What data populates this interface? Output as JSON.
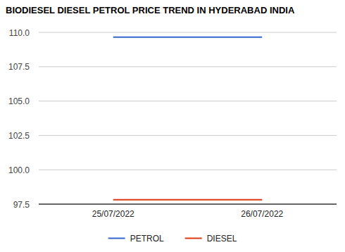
{
  "chart_data": {
    "type": "line",
    "title": "BIODIESEL DIESEL PETROL PRICE TREND IN HYDERABAD INDIA",
    "categories": [
      "25/07/2022",
      "26/07/2022"
    ],
    "series": [
      {
        "name": "PETROL",
        "color": "#3366cc",
        "values": [
          109.66,
          109.66
        ]
      },
      {
        "name": "DIESEL",
        "color": "#dc3912",
        "values": [
          97.82,
          97.82
        ]
      }
    ],
    "ylim": [
      97.5,
      110
    ],
    "yticks": [
      97.5,
      {
        "value": 100,
        "label": "100.0"
      },
      102.5,
      {
        "value": 105,
        "label": "105.0"
      },
      107.5,
      {
        "value": 110,
        "label": "110.0"
      }
    ],
    "grid": true,
    "legend": "bottom"
  }
}
